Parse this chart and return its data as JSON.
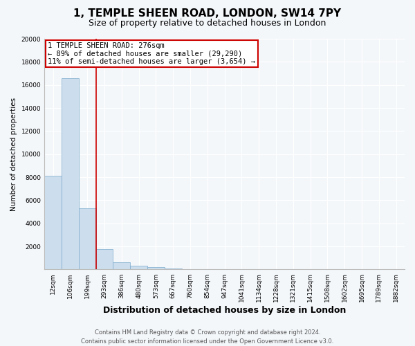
{
  "title": "1, TEMPLE SHEEN ROAD, LONDON, SW14 7PY",
  "subtitle": "Size of property relative to detached houses in London",
  "xlabel": "Distribution of detached houses by size in London",
  "ylabel": "Number of detached properties",
  "bar_labels": [
    "12sqm",
    "106sqm",
    "199sqm",
    "293sqm",
    "386sqm",
    "480sqm",
    "573sqm",
    "667sqm",
    "760sqm",
    "854sqm",
    "947sqm",
    "1041sqm",
    "1134sqm",
    "1228sqm",
    "1321sqm",
    "1415sqm",
    "1508sqm",
    "1602sqm",
    "1695sqm",
    "1789sqm",
    "1882sqm"
  ],
  "bar_values": [
    8100,
    16600,
    5300,
    1750,
    600,
    350,
    200,
    100,
    50,
    20,
    10,
    5,
    3,
    2,
    1,
    1,
    1,
    0,
    0,
    0,
    0
  ],
  "bar_color": "#ccdded",
  "bar_edge_color": "#7aaacc",
  "property_line_x": 2.5,
  "annotation_line1": "1 TEMPLE SHEEN ROAD: 276sqm",
  "annotation_line2": "← 89% of detached houses are smaller (29,290)",
  "annotation_line3": "11% of semi-detached houses are larger (3,654) →",
  "annotation_box_color": "#ffffff",
  "annotation_box_edge": "#cc0000",
  "vline_color": "#cc0000",
  "ylim": [
    0,
    20000
  ],
  "yticks": [
    0,
    2000,
    4000,
    6000,
    8000,
    10000,
    12000,
    14000,
    16000,
    18000,
    20000
  ],
  "footer_line1": "Contains HM Land Registry data © Crown copyright and database right 2024.",
  "footer_line2": "Contains public sector information licensed under the Open Government Licence v3.0.",
  "bg_color": "#f4f7fa",
  "plot_bg_color": "#f4f7fa",
  "title_fontsize": 11,
  "subtitle_fontsize": 9,
  "xlabel_fontsize": 9,
  "ylabel_fontsize": 7.5,
  "tick_fontsize": 6.5,
  "annot_fontsize": 7.5,
  "footer_fontsize": 6
}
